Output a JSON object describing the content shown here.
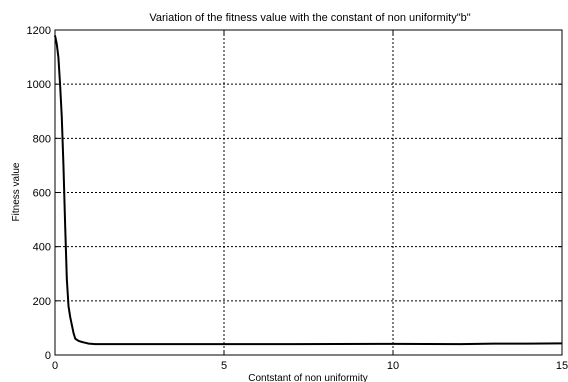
{
  "chart_data": {
    "type": "line",
    "title": "Variation of the fitness value with the constant of non uniformity\"b\"",
    "xlabel": "Contstant of non uniformity",
    "ylabel": "Fitness value",
    "xlim": [
      0,
      15
    ],
    "ylim": [
      0,
      1200
    ],
    "xticks": [
      0,
      5,
      10,
      15
    ],
    "yticks": [
      0,
      200,
      400,
      600,
      800,
      1000,
      1200
    ],
    "grid": true,
    "grid_style": "dashed",
    "legend": "none",
    "series": [
      {
        "color": "#000000",
        "x": [
          0,
          0.05,
          0.1,
          0.15,
          0.2,
          0.25,
          0.3,
          0.35,
          0.4,
          0.45,
          0.5,
          0.55,
          0.6,
          0.7,
          0.8,
          0.9,
          1.0,
          1.2,
          1.5,
          2,
          3,
          5,
          7,
          10,
          12,
          13,
          14,
          15
        ],
        "y": [
          1180,
          1150,
          1100,
          1000,
          880,
          700,
          480,
          280,
          180,
          140,
          110,
          80,
          60,
          52,
          48,
          45,
          42,
          40,
          40,
          40,
          40,
          40,
          40,
          41,
          40,
          42,
          42,
          43
        ]
      }
    ]
  }
}
